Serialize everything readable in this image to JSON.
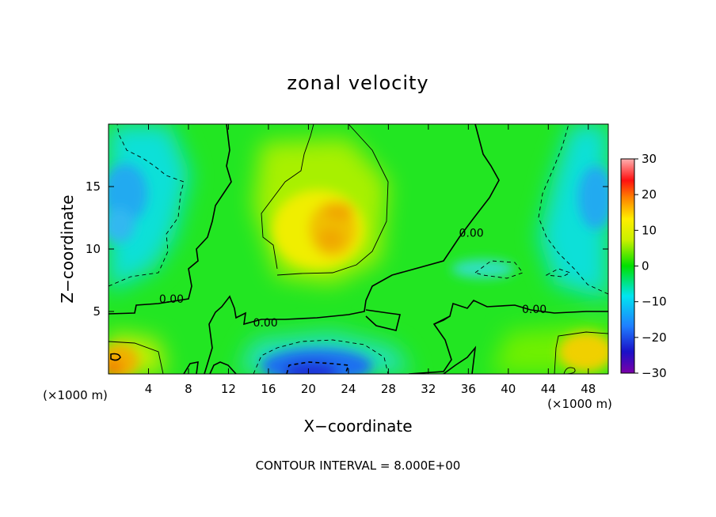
{
  "chart_data": {
    "type": "heatmap",
    "title": "zonal velocity",
    "xlabel": "X−coordinate",
    "ylabel": "Z−coordinate",
    "x_unit": "(×1000 m)",
    "y_unit": "(×1000 m)",
    "xlim": [
      0,
      50
    ],
    "ylim": [
      0,
      20
    ],
    "x_ticks": [
      4,
      8,
      12,
      16,
      20,
      24,
      28,
      32,
      36,
      40,
      44,
      48
    ],
    "y_ticks": [
      5,
      10,
      15
    ],
    "colorbar": {
      "range": [
        -30,
        30
      ],
      "ticks": [
        30,
        20,
        10,
        0,
        -10,
        -20,
        -30
      ],
      "tick_labels": [
        "30",
        "20",
        "10",
        "0",
        "−10",
        "−20",
        "−30"
      ]
    },
    "contour_labels": [
      {
        "text": "0.00",
        "x": 6.3,
        "z": 6.0
      },
      {
        "text": "0.00",
        "x": 15.7,
        "z": 4.1
      },
      {
        "text": "0.00",
        "x": 36.3,
        "z": 11.3
      },
      {
        "text": "0.00",
        "x": 42.6,
        "z": 5.2
      }
    ],
    "contour_interval_text": "CONTOUR INTERVAL = 8.000E+00",
    "features": [
      {
        "name": "positive-core-upper",
        "x": 22,
        "z": 12,
        "value": 12
      },
      {
        "name": "negative-core-bottom",
        "x": 21,
        "z": 0.8,
        "value": -18
      },
      {
        "name": "positive-core-bottom-left",
        "x": 1.5,
        "z": 1.2,
        "value": 14
      },
      {
        "name": "positive-core-bottom-right",
        "x": 47,
        "z": 1.5,
        "value": 10
      },
      {
        "name": "negative-core-left",
        "x": 1.5,
        "z": 13,
        "value": -10
      },
      {
        "name": "negative-core-right",
        "x": 49,
        "z": 13.5,
        "value": -10
      }
    ]
  }
}
